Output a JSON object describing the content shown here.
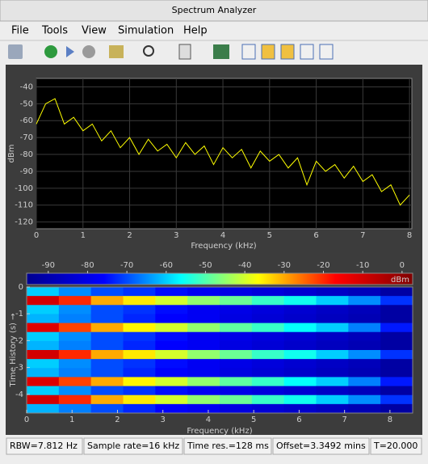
{
  "window": {
    "title": "Spectrum Analyzer"
  },
  "menu": [
    "File",
    "Tools",
    "View",
    "Simulation",
    "Help"
  ],
  "spectrum": {
    "type": "line",
    "color": "#ffff00",
    "grid": true,
    "xlabel": "Frequency (kHz)",
    "ylabel": "dBm",
    "x": [
      0,
      0.2,
      0.4,
      0.6,
      0.8,
      1.0,
      1.2,
      1.4,
      1.6,
      1.8,
      2.0,
      2.2,
      2.4,
      2.6,
      2.8,
      3.0,
      3.2,
      3.4,
      3.6,
      3.8,
      4.0,
      4.2,
      4.4,
      4.6,
      4.8,
      5.0,
      5.2,
      5.4,
      5.6,
      5.8,
      6.0,
      6.2,
      6.4,
      6.6,
      6.8,
      7.0,
      7.2,
      7.4,
      7.6,
      7.8,
      8.0
    ],
    "values": [
      -62,
      -50,
      -47,
      -62,
      -58,
      -66,
      -62,
      -72,
      -66,
      -76,
      -70,
      -80,
      -71,
      -78,
      -74,
      -82,
      -73,
      -80,
      -75,
      -86,
      -76,
      -82,
      -77,
      -88,
      -78,
      -84,
      -80,
      -88,
      -82,
      -98,
      -84,
      -90,
      -86,
      -94,
      -87,
      -96,
      -92,
      -102,
      -98,
      -110,
      -104
    ],
    "xlim": [
      0,
      8.05
    ],
    "ylim": [
      -124,
      -35
    ],
    "xticks": [
      0,
      1,
      2,
      3,
      4,
      5,
      6,
      7,
      8
    ],
    "yticks": [
      -40,
      -50,
      -60,
      -70,
      -80,
      -90,
      -100,
      -110,
      -120
    ]
  },
  "colorbar": {
    "label": "dBm",
    "clim": [
      -95.5,
      2.7
    ],
    "ticks": [
      -90,
      -80,
      -70,
      -60,
      -50,
      -40,
      -30,
      -20,
      -10,
      0
    ],
    "colormap": [
      "#00008f",
      "#0000ff",
      "#00ffff",
      "#ffff00",
      "#ff0000",
      "#800000"
    ]
  },
  "spectrogram": {
    "type": "heatmap",
    "xlabel": "Frequency (kHz)",
    "ylabel": "Time History (s) →",
    "xlim": [
      0,
      8.5
    ],
    "ylim": [
      -4.7,
      0
    ],
    "xticks": [
      0,
      1,
      2,
      3,
      4,
      5,
      6,
      7,
      8
    ],
    "yticks": [
      0,
      -1,
      -2,
      -3,
      -4
    ],
    "values": [
      [
        -60,
        -65,
        -70,
        -72,
        -75,
        -78,
        -80,
        -82,
        -84,
        -86,
        -88,
        -92
      ],
      [
        -10,
        -20,
        -30,
        -35,
        -40,
        -45,
        -48,
        -52,
        -55,
        -60,
        -65,
        -72
      ],
      [
        -60,
        -65,
        -70,
        -72,
        -75,
        -78,
        -80,
        -82,
        -84,
        -86,
        -88,
        -92
      ],
      [
        -62,
        -66,
        -70,
        -73,
        -76,
        -78,
        -81,
        -83,
        -85,
        -87,
        -89,
        -92
      ],
      [
        -12,
        -22,
        -30,
        -36,
        -40,
        -45,
        -49,
        -52,
        -56,
        -60,
        -66,
        -74
      ],
      [
        -60,
        -65,
        -70,
        -72,
        -75,
        -78,
        -80,
        -82,
        -84,
        -86,
        -88,
        -92
      ],
      [
        -62,
        -66,
        -70,
        -73,
        -76,
        -78,
        -81,
        -83,
        -85,
        -87,
        -89,
        -92
      ],
      [
        -10,
        -20,
        -30,
        -35,
        -40,
        -45,
        -48,
        -52,
        -55,
        -60,
        -65,
        -72
      ],
      [
        -60,
        -65,
        -70,
        -72,
        -75,
        -78,
        -80,
        -82,
        -84,
        -86,
        -88,
        -92
      ],
      [
        -62,
        -66,
        -70,
        -73,
        -76,
        -78,
        -81,
        -83,
        -85,
        -87,
        -89,
        -92
      ],
      [
        -12,
        -22,
        -30,
        -36,
        -40,
        -45,
        -49,
        -52,
        -56,
        -60,
        -66,
        -74
      ],
      [
        -60,
        -65,
        -70,
        -72,
        -75,
        -78,
        -80,
        -82,
        -84,
        -86,
        -88,
        -92
      ],
      [
        -10,
        -20,
        -30,
        -35,
        -40,
        -45,
        -48,
        -52,
        -55,
        -60,
        -65,
        -72
      ],
      [
        -62,
        -66,
        -70,
        -73,
        -76,
        -78,
        -81,
        -83,
        -85,
        -87,
        -89,
        -92
      ]
    ]
  },
  "status": [
    "RBW=7.812 Hz",
    "Sample rate=16 kHz",
    "Time res.=128 ms",
    "Offset=3.3492 mins",
    "T=20.000"
  ]
}
